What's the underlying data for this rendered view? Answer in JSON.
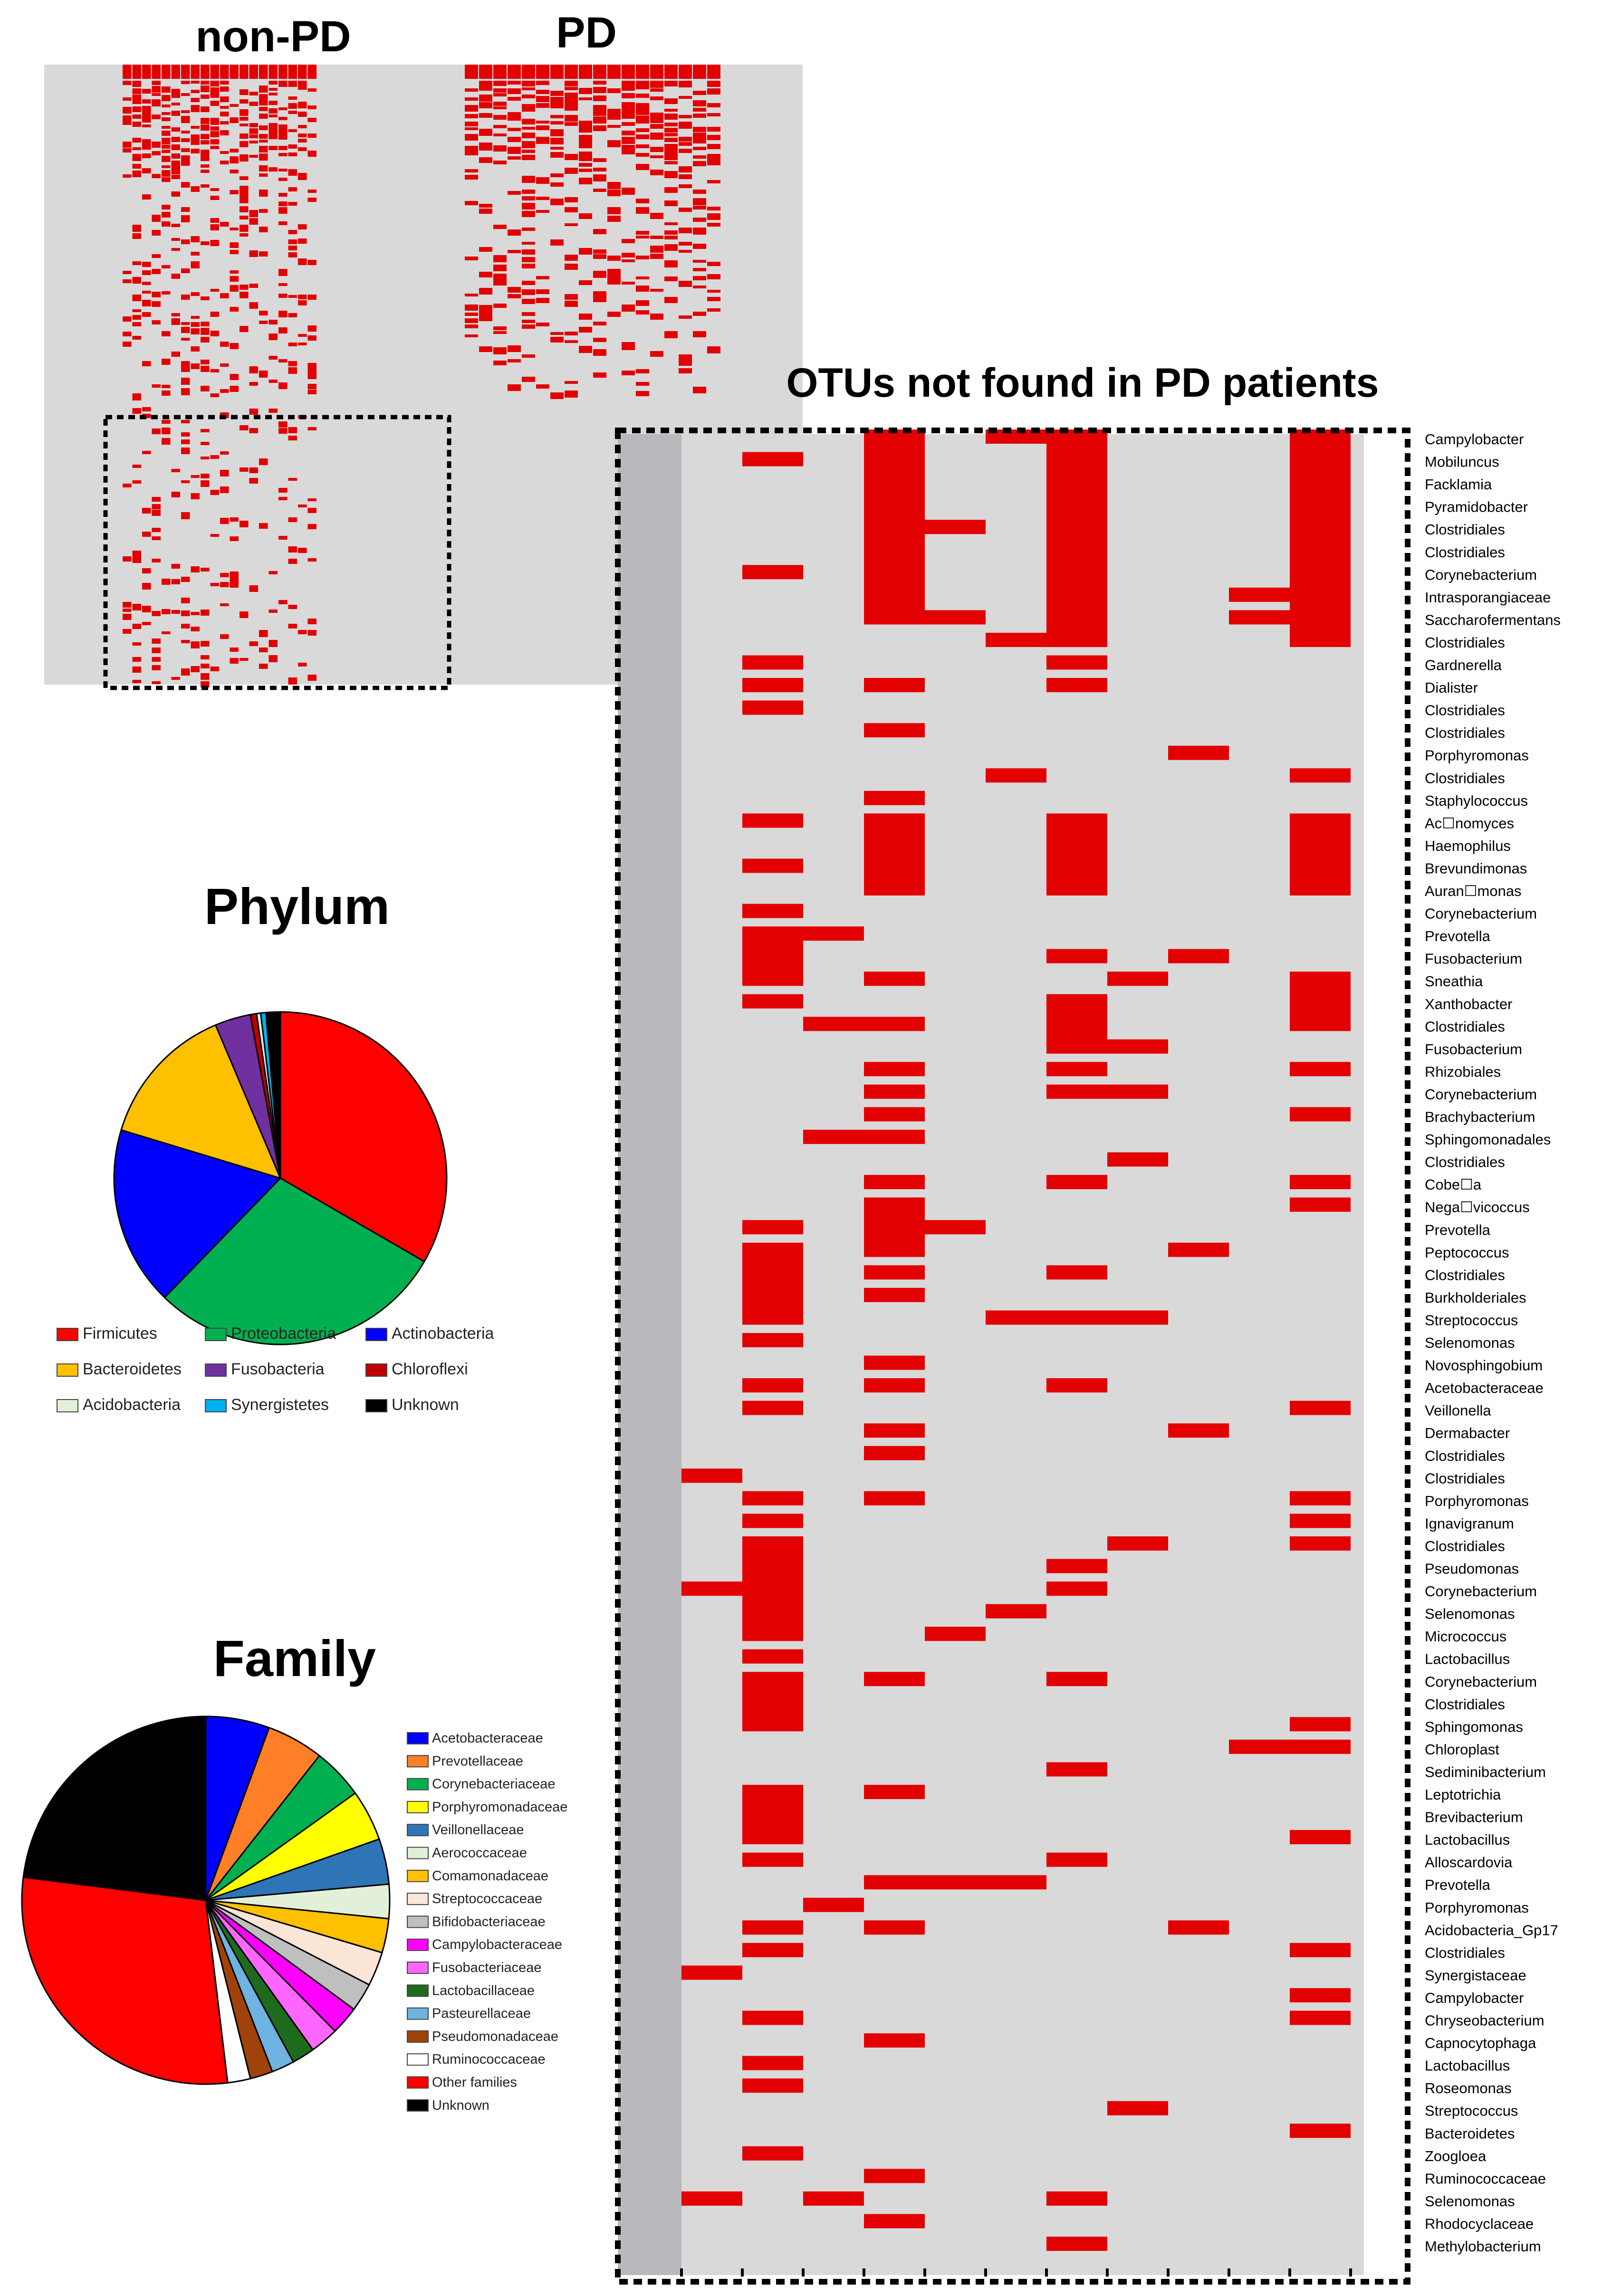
{
  "colors": {
    "present": "#e30000",
    "absent": "#d9d9d9",
    "border": "#000000"
  },
  "top_heatmap": {
    "label_nonpd": "non-PD",
    "label_pd": "PD"
  },
  "otu_panel": {
    "title": "OTUs not found in PD patients",
    "labels": [
      "Campylobacter",
      "Mobiluncus",
      "Facklamia",
      "Pyramidobacter",
      "Clostridiales",
      "Clostridiales",
      "Corynebacterium",
      "Intrasporangiaceae",
      "Saccharofermentans",
      "Clostridiales",
      "Gardnerella",
      "Dialister",
      "Clostridiales",
      "Clostridiales",
      "Porphyromonas",
      "Clostridiales",
      "Staphylococcus",
      "Ac☐nomyces",
      "Haemophilus",
      "Brevundimonas",
      "Auran☐monas",
      "Corynebacterium",
      "Prevotella",
      "Fusobacterium",
      "Sneathia",
      "Xanthobacter",
      "Clostridiales",
      "Fusobacterium",
      "Rhizobiales",
      "Corynebacterium",
      "Brachybacterium",
      "Sphingomonadales",
      "Clostridiales",
      "Cobe☐a",
      "Nega☐vicoccus",
      "Prevotella",
      "Peptococcus",
      "Clostridiales",
      "Burkholderiales",
      "Streptococcus",
      "Selenomonas",
      "Novosphingobium",
      "Acetobacteraceae",
      "Veillonella",
      "Dermabacter",
      "Clostridiales",
      "Clostridiales",
      "Porphyromonas",
      "Ignavigranum",
      "Clostridiales",
      "Pseudomonas",
      "Corynebacterium",
      "Selenomonas",
      "Micrococcus",
      "Lactobacillus",
      "Corynebacterium",
      "Clostridiales",
      "Sphingomonas",
      "Chloroplast",
      "Sediminibacterium",
      "Leptotrichia",
      "Brevibacterium",
      "Lactobacillus",
      "Alloscardovia",
      "Prevotella",
      "Porphyromonas",
      "Acidobacteria_Gp17",
      "Clostridiales",
      "Synergistaceae",
      "Campylobacter",
      "Chryseobacterium",
      "Capnocytophaga",
      "Lactobacillus",
      "Roseomonas",
      "Streptococcus",
      "Bacteroidetes",
      "Zoogloea",
      "Ruminococcaceae",
      "Selenomonas",
      "Rhodocyclaceae",
      "Methylobacterium"
    ]
  },
  "chart_data": [
    {
      "type": "pie",
      "title": "Phylum",
      "categories": [
        "Firmicutes",
        "Proteobacteria",
        "Actinobacteria",
        "Bacteroidetes",
        "Fusobacteria",
        "Chloroflexi",
        "Acidobacteria",
        "Synergistetes",
        "Unknown"
      ],
      "values": [
        33.5,
        29.0,
        17.5,
        14.0,
        3.5,
        0.6,
        0.4,
        0.5,
        1.4
      ],
      "colors": [
        "#ff0000",
        "#00b050",
        "#0000ff",
        "#ffc000",
        "#7030a0",
        "#c00000",
        "#e2f0d9",
        "#00b0f0",
        "#000000"
      ],
      "legend_position": "bottom"
    },
    {
      "type": "pie",
      "title": "Family",
      "categories": [
        "Acetobacteraceae",
        "Prevotellaceae",
        "Corynebacteriaceae",
        "Porphyromonadaceae",
        "Veillonellaceae",
        "Aerococcaceae",
        "Comamonadaceae",
        "Streptococcaceae",
        "Bifidobacteriaceae",
        "Campylobacteraceae",
        "Fusobacteriaceae",
        "Lactobacillaceae",
        "Pasteurellaceae",
        "Pseudomonadaceae",
        "Ruminococcaceae",
        "Other families",
        "Unknown"
      ],
      "values": [
        5.6,
        5.0,
        4.5,
        4.5,
        4.0,
        3.0,
        3.0,
        3.0,
        2.5,
        2.5,
        2.5,
        2.0,
        2.0,
        2.0,
        2.0,
        28.9,
        23.0
      ],
      "colors": [
        "#0000ff",
        "#ff7f27",
        "#00b050",
        "#ffff00",
        "#2e75b6",
        "#e2f0d9",
        "#ffc000",
        "#fbe5d6",
        "#bfbfbf",
        "#ff00ff",
        "#ff66ff",
        "#1e6b1e",
        "#6fb3e0",
        "#a0430a",
        "#ffffff",
        "#ff0000",
        "#000000"
      ],
      "legend_position": "right"
    }
  ]
}
